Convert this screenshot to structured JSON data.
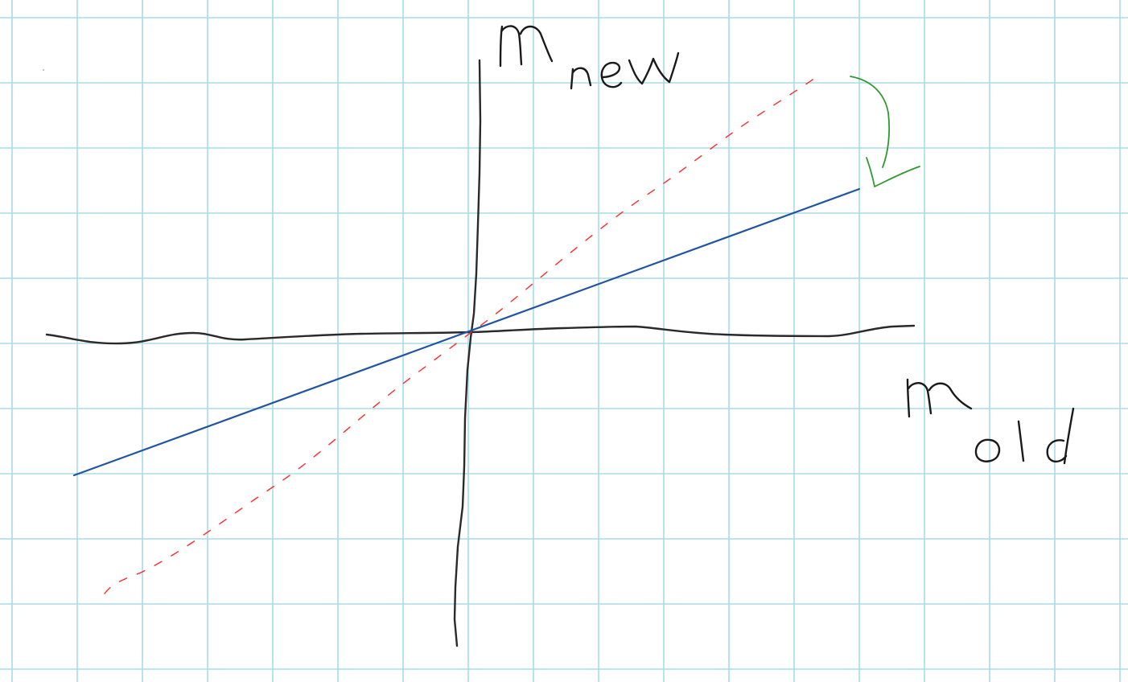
{
  "diagram": {
    "y_axis_label": {
      "main": "m",
      "subscript": "new"
    },
    "x_axis_label": {
      "main": "m",
      "subscript": "old"
    },
    "lines": [
      {
        "name": "dashed-line",
        "style": "dashed",
        "color": "#ff2a2a"
      },
      {
        "name": "solid-line",
        "style": "solid",
        "color": "#1f55a0"
      }
    ],
    "rotation_arrow": {
      "color": "#2e9a2e",
      "direction": "clockwise"
    },
    "axis_color": "#2a2a2a",
    "grid_color": "#a8dbe8"
  }
}
